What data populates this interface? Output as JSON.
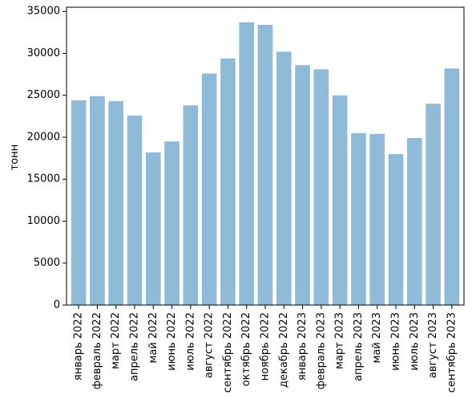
{
  "chart_data": {
    "type": "bar",
    "title": "",
    "xlabel": "",
    "ylabel": "тонн",
    "ylim": [
      0,
      35500
    ],
    "yticks": [
      0,
      5000,
      10000,
      15000,
      20000,
      25000,
      30000,
      35000
    ],
    "categories": [
      "январь 2022",
      "февраль 2022",
      "март 2022",
      "апрель 2022",
      "май 2022",
      "июнь 2022",
      "июль 2022",
      "август 2022",
      "сентябрь 2022",
      "октябрь 2022",
      "ноябрь 2022",
      "декабрь 2022",
      "январь 2023",
      "февраль 2023",
      "март 2023",
      "апрель 2023",
      "май 2023",
      "июнь 2023",
      "июль 2023",
      "август 2023",
      "сентябрь 2023"
    ],
    "values": [
      24400,
      24900,
      24300,
      22600,
      18200,
      19500,
      23800,
      27600,
      29400,
      33700,
      33400,
      30200,
      28600,
      28100,
      25000,
      20500,
      20400,
      18000,
      19900,
      24000,
      28200
    ],
    "bar_color": "#8fbbd9",
    "grid": false,
    "legend": "none"
  }
}
